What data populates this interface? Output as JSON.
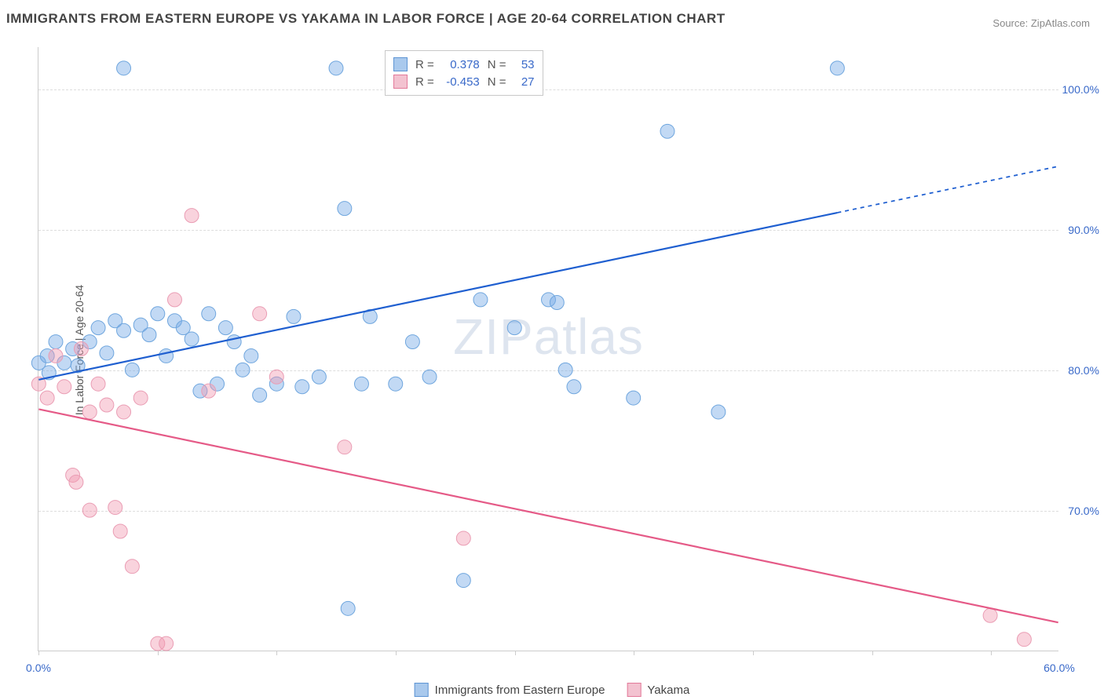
{
  "title": "IMMIGRANTS FROM EASTERN EUROPE VS YAKAMA IN LABOR FORCE | AGE 20-64 CORRELATION CHART",
  "source_label": "Source:",
  "source_name": "ZipAtlas.com",
  "ylabel": "In Labor Force | Age 20-64",
  "watermark_a": "ZIP",
  "watermark_b": "atlas",
  "chart": {
    "type": "scatter",
    "background_color": "#ffffff",
    "grid_color": "#dddddd",
    "axis_color": "#cccccc",
    "label_color": "#3969c9",
    "title_color": "#444444",
    "title_fontsize": 17,
    "label_fontsize": 14,
    "xlim": [
      0,
      60
    ],
    "ylim": [
      60,
      103
    ],
    "yticks": [
      70,
      80,
      90,
      100
    ],
    "ytick_labels": [
      "70.0%",
      "80.0%",
      "90.0%",
      "100.0%"
    ],
    "xticks": [
      0,
      7,
      14,
      21,
      28,
      35,
      42,
      49,
      56
    ],
    "xtick_labels_shown": {
      "0": "0.0%",
      "60": "60.0%"
    },
    "marker_radius": 9,
    "marker_opacity": 0.55,
    "line_width": 2.2
  },
  "series": [
    {
      "name": "Immigrants from Eastern Europe",
      "color_fill": "rgba(120,170,230,0.45)",
      "color_stroke": "#6fa6de",
      "swatch_fill": "#a9c9ed",
      "swatch_border": "#5e95d4",
      "line_color": "#1f5fd0",
      "R": "0.378",
      "N": "53",
      "trend": {
        "x1": 0,
        "y1": 79.3,
        "x2": 47,
        "y2": 91.2,
        "x2_dash": 60,
        "y2_dash": 94.5
      },
      "points": [
        [
          0,
          80.5
        ],
        [
          0.5,
          81
        ],
        [
          0.6,
          79.8
        ],
        [
          1,
          82
        ],
        [
          1.5,
          80.5
        ],
        [
          2,
          81.5
        ],
        [
          2.3,
          80.3
        ],
        [
          3,
          82
        ],
        [
          3.5,
          83
        ],
        [
          4,
          81.2
        ],
        [
          4.5,
          83.5
        ],
        [
          5,
          82.8
        ],
        [
          5,
          101.5
        ],
        [
          5.5,
          80
        ],
        [
          6,
          83.2
        ],
        [
          6.5,
          82.5
        ],
        [
          7,
          84
        ],
        [
          7.5,
          81
        ],
        [
          8,
          83.5
        ],
        [
          8.5,
          83
        ],
        [
          9,
          82.2
        ],
        [
          9.5,
          78.5
        ],
        [
          10,
          84
        ],
        [
          10.5,
          79
        ],
        [
          11,
          83
        ],
        [
          11.5,
          82
        ],
        [
          12,
          80
        ],
        [
          12.5,
          81
        ],
        [
          13,
          78.2
        ],
        [
          14,
          79
        ],
        [
          15,
          83.8
        ],
        [
          15.5,
          78.8
        ],
        [
          16.5,
          79.5
        ],
        [
          17.5,
          101.5
        ],
        [
          18,
          91.5
        ],
        [
          18.2,
          63
        ],
        [
          19,
          79
        ],
        [
          19.5,
          83.8
        ],
        [
          21,
          79
        ],
        [
          22,
          82
        ],
        [
          23,
          79.5
        ],
        [
          25,
          65
        ],
        [
          26,
          85
        ],
        [
          27,
          101.5
        ],
        [
          28,
          83
        ],
        [
          30,
          85
        ],
        [
          30.5,
          84.8
        ],
        [
          31,
          80
        ],
        [
          31.5,
          78.8
        ],
        [
          35,
          78
        ],
        [
          37,
          97
        ],
        [
          40,
          77
        ],
        [
          47,
          101.5
        ]
      ]
    },
    {
      "name": "Yakama",
      "color_fill": "rgba(240,150,175,0.42)",
      "color_stroke": "#ea9db4",
      "swatch_fill": "#f3c2d0",
      "swatch_border": "#e37a9a",
      "line_color": "#e55a87",
      "R": "-0.453",
      "N": "27",
      "trend": {
        "x1": 0,
        "y1": 77.2,
        "x2": 60,
        "y2": 62
      },
      "points": [
        [
          0,
          79
        ],
        [
          0.5,
          78
        ],
        [
          1,
          81
        ],
        [
          1.5,
          78.8
        ],
        [
          2,
          72.5
        ],
        [
          2.2,
          72
        ],
        [
          2.5,
          81.5
        ],
        [
          3,
          77
        ],
        [
          3,
          70
        ],
        [
          3.5,
          79
        ],
        [
          4,
          77.5
        ],
        [
          4.5,
          70.2
        ],
        [
          4.8,
          68.5
        ],
        [
          5,
          77
        ],
        [
          5.5,
          66
        ],
        [
          6,
          78
        ],
        [
          7,
          60.5
        ],
        [
          7.5,
          60.5
        ],
        [
          8,
          85
        ],
        [
          9,
          91
        ],
        [
          10,
          78.5
        ],
        [
          13,
          84
        ],
        [
          14,
          79.5
        ],
        [
          18,
          74.5
        ],
        [
          25,
          68
        ],
        [
          56,
          62.5
        ],
        [
          58,
          60.8
        ]
      ]
    }
  ],
  "legend_bottom": [
    {
      "label": "Immigrants from Eastern Europe",
      "series": 0
    },
    {
      "label": "Yakama",
      "series": 1
    }
  ]
}
